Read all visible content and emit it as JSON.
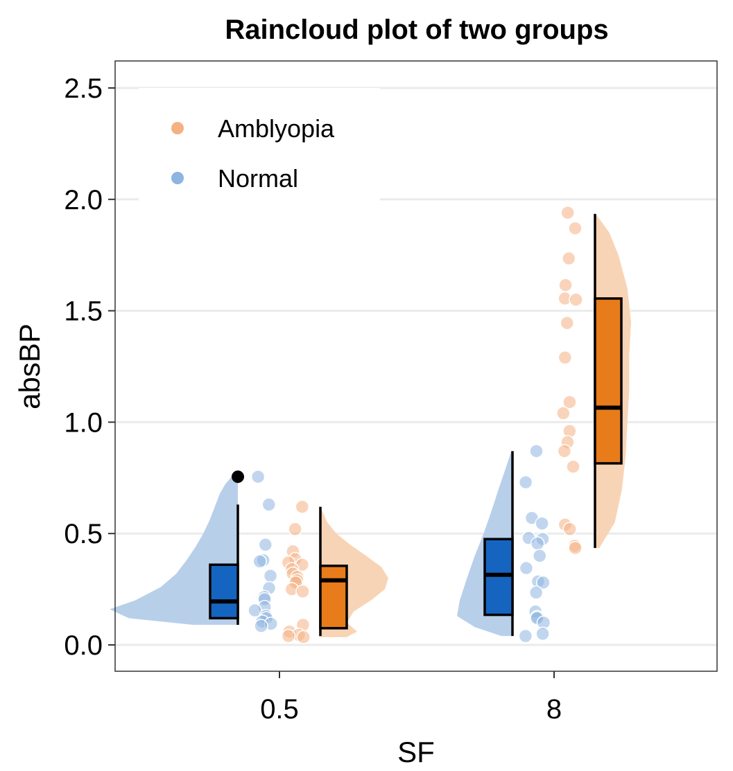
{
  "chart_data": {
    "type": "raincloud",
    "title": "Raincloud plot of two groups",
    "xlabel": "SF",
    "ylabel": "absBP",
    "categories": [
      "0.5",
      "8"
    ],
    "ylim": [
      -0.12,
      2.62
    ],
    "yticks": [
      0.0,
      0.5,
      1.0,
      1.5,
      2.0,
      2.5
    ],
    "ytick_labels": [
      "0.0",
      "0.5",
      "1.0",
      "1.5",
      "2.0",
      "2.5"
    ],
    "grid": "horizontal",
    "legend_position": "top-left",
    "legend": [
      {
        "label": "Amblyopia",
        "color": "#f4b183"
      },
      {
        "label": "Normal",
        "color": "#8eb4e0"
      }
    ],
    "colors": {
      "normal_box": "#1565c0",
      "amblyopia_box": "#e87b1a",
      "normal_cloud": "#b8cfea",
      "amblyopia_cloud": "#f8d4b6",
      "normal_point": "#8eb4e0",
      "amblyopia_point": "#f4b183"
    },
    "series": [
      {
        "name": "Normal",
        "groups": [
          {
            "category": "0.5",
            "box": {
              "q1": 0.12,
              "median": 0.195,
              "q3": 0.36,
              "whisker_low": 0.09,
              "whisker_high": 0.63
            },
            "outliers": [
              0.755
            ],
            "points": [
              0.755,
              0.63,
              0.45,
              0.38,
              0.375,
              0.31,
              0.255,
              0.215,
              0.205,
              0.17,
              0.155,
              0.13,
              0.12,
              0.105,
              0.095,
              0.085
            ],
            "density_y": [
              0.09,
              0.12,
              0.16,
              0.2,
              0.26,
              0.32,
              0.38,
              0.44,
              0.5,
              0.56,
              0.62,
              0.68,
              0.72,
              0.755
            ],
            "density_w": [
              0.35,
              0.85,
              1.0,
              0.8,
              0.6,
              0.48,
              0.4,
              0.33,
              0.27,
              0.22,
              0.18,
              0.14,
              0.1,
              0.05
            ]
          },
          {
            "category": "8",
            "box": {
              "q1": 0.135,
              "median": 0.315,
              "q3": 0.475,
              "whisker_low": 0.04,
              "whisker_high": 0.87
            },
            "outliers": [],
            "points": [
              0.87,
              0.73,
              0.57,
              0.545,
              0.48,
              0.475,
              0.455,
              0.4,
              0.345,
              0.285,
              0.28,
              0.235,
              0.15,
              0.125,
              0.12,
              0.1,
              0.05,
              0.04
            ],
            "density_y": [
              0.04,
              0.08,
              0.13,
              0.2,
              0.3,
              0.4,
              0.5,
              0.6,
              0.7,
              0.78,
              0.87
            ],
            "density_w": [
              0.2,
              0.68,
              1.0,
              0.95,
              0.82,
              0.68,
              0.52,
              0.38,
              0.25,
              0.14,
              0.02
            ]
          }
        ]
      },
      {
        "name": "Amblyopia",
        "groups": [
          {
            "category": "0.5",
            "box": {
              "q1": 0.075,
              "median": 0.29,
              "q3": 0.355,
              "whisker_low": 0.04,
              "whisker_high": 0.62
            },
            "outliers": [],
            "points": [
              0.62,
              0.52,
              0.42,
              0.385,
              0.37,
              0.36,
              0.34,
              0.32,
              0.305,
              0.29,
              0.28,
              0.25,
              0.24,
              0.09,
              0.06,
              0.045,
              0.04,
              0.035
            ],
            "density_y": [
              0.035,
              0.06,
              0.1,
              0.15,
              0.2,
              0.25,
              0.3,
              0.35,
              0.4,
              0.45,
              0.5,
              0.55,
              0.62
            ],
            "density_w": [
              0.4,
              0.55,
              0.4,
              0.5,
              0.75,
              0.95,
              1.0,
              0.9,
              0.68,
              0.45,
              0.25,
              0.12,
              0.02
            ]
          },
          {
            "category": "8",
            "box": {
              "q1": 0.815,
              "median": 1.065,
              "q3": 1.555,
              "whisker_low": 0.435,
              "whisker_high": 1.935
            },
            "outliers": [],
            "points": [
              1.94,
              1.87,
              1.735,
              1.615,
              1.555,
              1.55,
              1.445,
              1.29,
              1.09,
              1.04,
              0.96,
              0.91,
              0.87,
              0.8,
              0.54,
              0.52,
              0.445,
              0.435
            ],
            "density_y": [
              0.435,
              0.55,
              0.7,
              0.85,
              1.0,
              1.15,
              1.3,
              1.45,
              1.6,
              1.75,
              1.85,
              1.935
            ],
            "density_w": [
              0.12,
              0.55,
              0.75,
              0.85,
              0.9,
              0.95,
              0.95,
              1.0,
              0.9,
              0.65,
              0.4,
              0.02
            ]
          }
        ]
      }
    ]
  }
}
